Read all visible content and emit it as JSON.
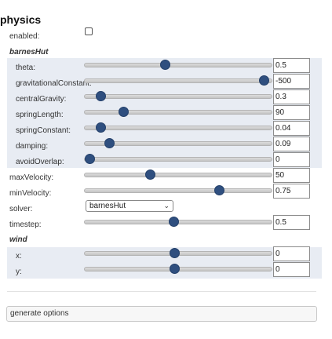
{
  "section": {
    "title": "physics"
  },
  "enabled": {
    "label": "enabled:",
    "checked": false
  },
  "barnesHut": {
    "title": "barnesHut",
    "rows": [
      {
        "label": "theta:",
        "value": "0.5",
        "fraction": 0.425
      },
      {
        "label": "gravitationalConstant:",
        "value": "-500",
        "fraction": 0.985
      },
      {
        "label": "centralGravity:",
        "value": "0.3",
        "fraction": 0.06
      },
      {
        "label": "springLength:",
        "value": "90",
        "fraction": 0.19
      },
      {
        "label": "springConstant:",
        "value": "0.04",
        "fraction": 0.06
      },
      {
        "label": "damping:",
        "value": "0.09",
        "fraction": 0.11
      },
      {
        "label": "avoidOverlap:",
        "value": "0",
        "fraction": 0.0
      }
    ]
  },
  "general": {
    "rows": [
      {
        "label": "maxVelocity:",
        "value": "50",
        "fraction": 0.34
      },
      {
        "label": "minVelocity:",
        "value": "0.75",
        "fraction": 0.735
      }
    ]
  },
  "solver": {
    "label": "solver:",
    "selected": "barnesHut"
  },
  "timestep": {
    "label": "timestep:",
    "value": "0.5",
    "fraction": 0.475
  },
  "wind": {
    "title": "wind",
    "rows": [
      {
        "label": "x:",
        "value": "0",
        "fraction": 0.48
      },
      {
        "label": "y:",
        "value": "0",
        "fraction": 0.48
      }
    ]
  },
  "generate": {
    "label": "generate options"
  },
  "colors": {
    "knob": "#2f4f7f",
    "band": "#e8ecf3"
  }
}
